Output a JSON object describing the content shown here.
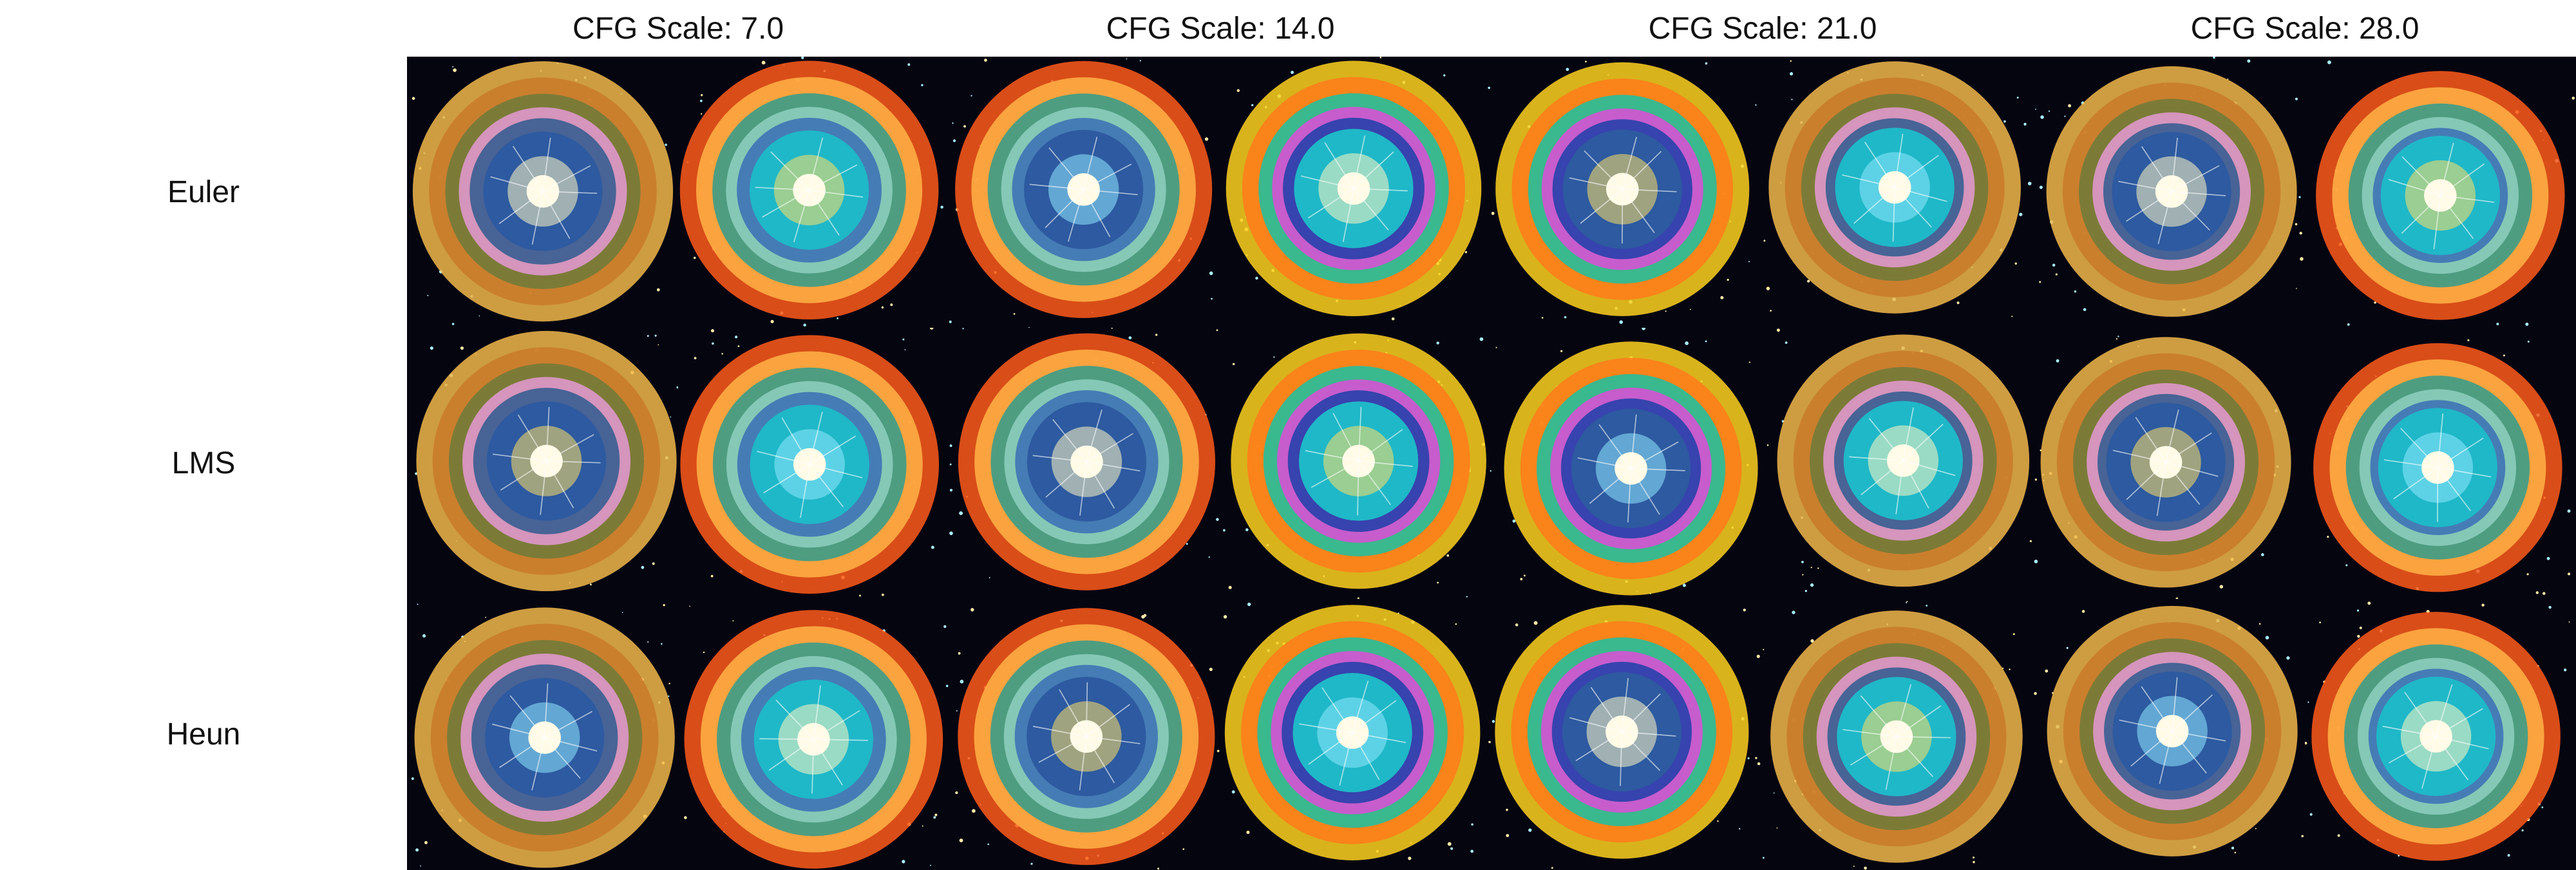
{
  "columns": [
    {
      "label": "CFG Scale: 7.0"
    },
    {
      "label": "CFG Scale: 14.0"
    },
    {
      "label": "CFG Scale: 21.0"
    },
    {
      "label": "CFG Scale: 28.0"
    }
  ],
  "rows": [
    {
      "label": "Euler"
    },
    {
      "label": "LMS"
    },
    {
      "label": "Heun"
    }
  ],
  "palettes": {
    "rings_warm": [
      "#f2b84a",
      "#c97a2a",
      "#6d7a3a",
      "#e59ad4",
      "#2f5a8f"
    ],
    "rings_fire": [
      "#ff5a1a",
      "#ffb347",
      "#2f9c8c",
      "#8fd0c0",
      "#3a6fb5"
    ],
    "rings_neon": [
      "#ffd21f",
      "#ff7a1a",
      "#18c2a3",
      "#e04bd8",
      "#1d3ea8"
    ],
    "core": [
      "#fff7c2",
      "#ffe066",
      "#8fe8ff"
    ],
    "space": "#050510"
  }
}
